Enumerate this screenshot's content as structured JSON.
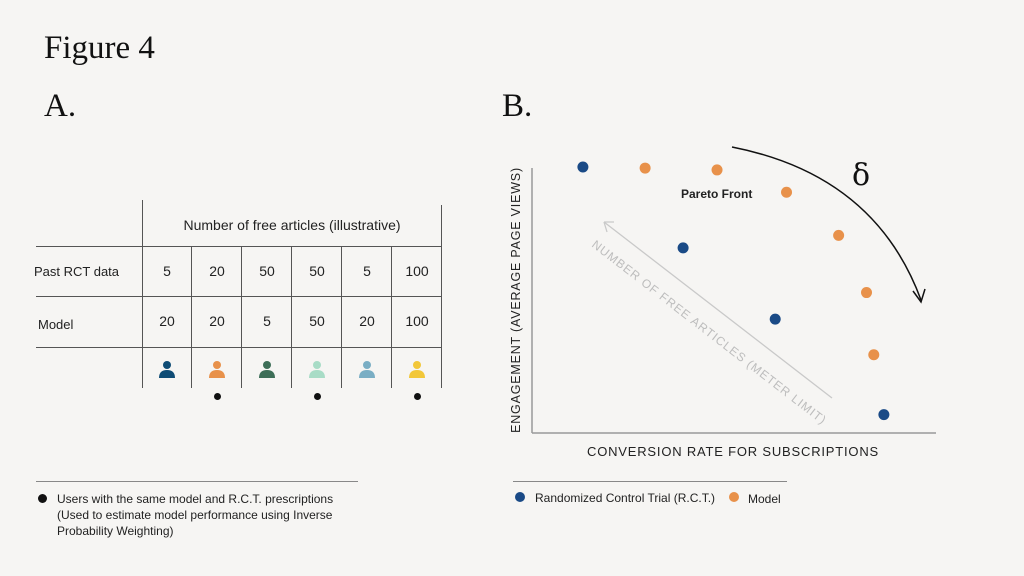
{
  "figure_title": "Figure 4",
  "panel_a": {
    "label": "A.",
    "table": {
      "header": "Number of free articles (illustrative)",
      "rows": [
        {
          "label": "Past RCT data",
          "values": [
            "5",
            "20",
            "50",
            "50",
            "5",
            "100"
          ]
        },
        {
          "label": "Model",
          "values": [
            "20",
            "20",
            "5",
            "50",
            "20",
            "100"
          ]
        }
      ],
      "users": [
        {
          "icon": "person-icon",
          "color": "#0f4c75",
          "match": false
        },
        {
          "icon": "person-icon",
          "color": "#e8914a",
          "match": true
        },
        {
          "icon": "person-icon",
          "color": "#3d6e57",
          "match": false
        },
        {
          "icon": "person-icon",
          "color": "#a8dcc6",
          "match": true
        },
        {
          "icon": "person-icon",
          "color": "#7aaec4",
          "match": false
        },
        {
          "icon": "person-icon",
          "color": "#f2c739",
          "match": true
        }
      ]
    },
    "legend": {
      "icon": "black-dot-icon",
      "text_line1": "Users with the same model and R.C.T. prescriptions",
      "text_line2": "(Used to estimate model performance using Inverse",
      "text_line3": "Probability Weighting)"
    }
  },
  "panel_b": {
    "label": "B.",
    "chart_data": {
      "type": "scatter",
      "xlabel": "CONVERSION RATE FOR SUBSCRIPTIONS",
      "ylabel": "ENGAGEMENT (AVERAGE PAGE VIEWS)",
      "xlim": [
        0,
        100
      ],
      "ylim": [
        0,
        100
      ],
      "grid": false,
      "series": [
        {
          "name": "Randomized Control Trial (R.C.T.)",
          "color": "#1a4a86",
          "points": [
            [
              12.6,
              100
            ],
            [
              37.4,
              69.6
            ],
            [
              60.2,
              42.8
            ],
            [
              87.1,
              6.9
            ]
          ]
        },
        {
          "name": "Model",
          "color": "#e8914a",
          "points": [
            [
              28,
              99.6
            ],
            [
              45.8,
              98.9
            ],
            [
              63,
              90.5
            ],
            [
              75.9,
              74.3
            ],
            [
              82.8,
              52.8
            ],
            [
              84.6,
              29.4
            ]
          ]
        }
      ],
      "annotations": {
        "pareto_label": "Pareto Front",
        "delta_symbol": "δ",
        "meter_arrow_label": "NUMBER OF FREE ARTICLES (METER LIMIT)"
      },
      "legend_position": "bottom"
    }
  }
}
